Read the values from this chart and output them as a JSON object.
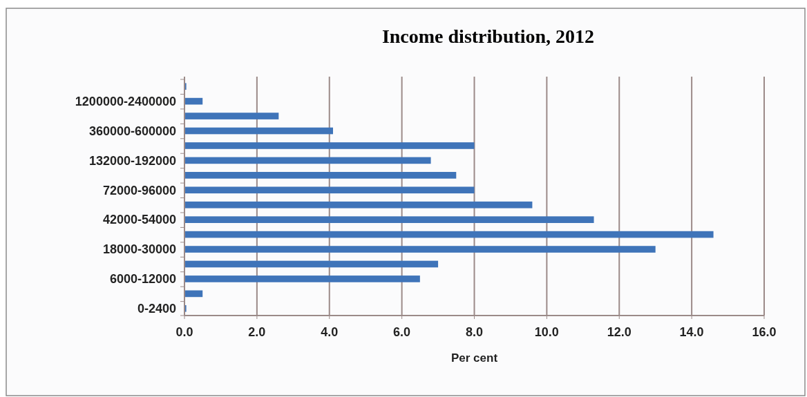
{
  "chart_data": {
    "type": "bar",
    "orientation": "horizontal",
    "title": "Income distribution, 2012",
    "xlabel": "Per cent",
    "categories": [
      null,
      "1200000-2400000",
      null,
      "360000-600000",
      null,
      "132000-192000",
      null,
      "72000-96000",
      null,
      "42000-54000",
      null,
      "18000-30000",
      null,
      "6000-12000",
      null,
      "0-2400"
    ],
    "values": [
      0.05,
      0.5,
      2.6,
      4.1,
      8.0,
      6.8,
      7.5,
      8.0,
      9.6,
      11.3,
      14.6,
      13.0,
      7.0,
      6.5,
      0.5,
      0.05
    ],
    "color": "#3f74b9",
    "xlim": [
      0,
      16
    ],
    "xticks": [
      {
        "value": 0,
        "label": "0.0"
      },
      {
        "value": 2,
        "label": "2.0"
      },
      {
        "value": 4,
        "label": "4.0"
      },
      {
        "value": 6,
        "label": "6.0"
      },
      {
        "value": 8,
        "label": "8.0"
      },
      {
        "value": 10,
        "label": "10.0"
      },
      {
        "value": 12,
        "label": "12.0"
      },
      {
        "value": 14,
        "label": "14.0"
      },
      {
        "value": 16,
        "label": "16.0"
      }
    ],
    "grid": "x"
  }
}
